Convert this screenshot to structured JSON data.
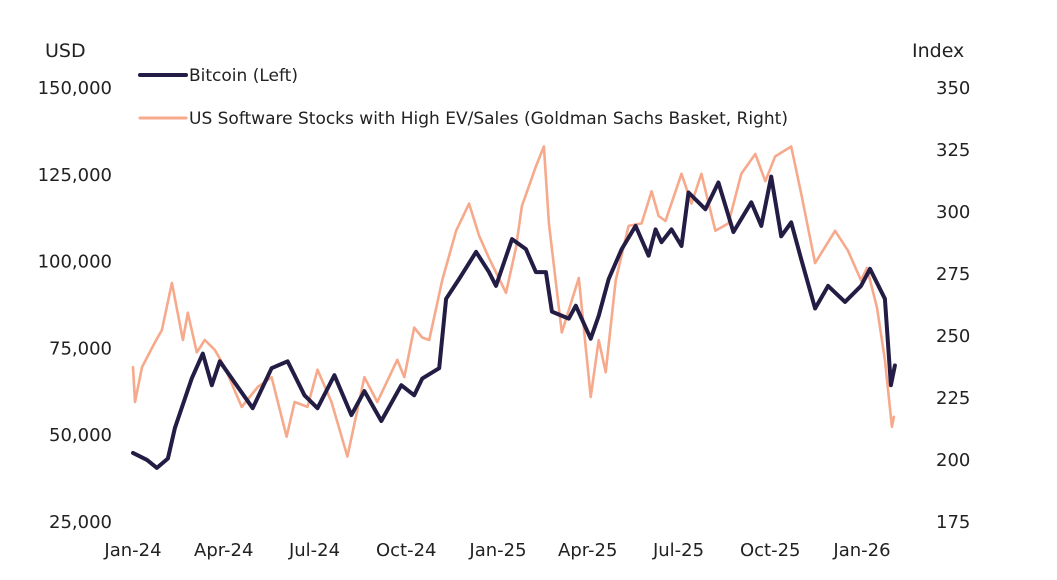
{
  "chart_data": {
    "type": "line",
    "title": "",
    "y_left_label": "USD",
    "y_right_label": "Index",
    "y_left_lim": [
      25000,
      150000
    ],
    "y_right_lim": [
      175,
      350
    ],
    "y_left_ticks": [
      "25,000",
      "50,000",
      "75,000",
      "100,000",
      "125,000",
      "150,000"
    ],
    "y_right_ticks": [
      "175",
      "200",
      "225",
      "250",
      "275",
      "300",
      "325",
      "350"
    ],
    "x_ticks": [
      "Jan-24",
      "Apr-24",
      "Jul-24",
      "Oct-24",
      "Jan-25",
      "Apr-25",
      "Jul-25",
      "Oct-25",
      "Jan-26"
    ],
    "x_range": [
      "2024-01-01",
      "2026-02-03"
    ],
    "grid": false,
    "legend_position": "top-left",
    "series": [
      {
        "name": "US Software Stocks with High EV/Sales (Goldman Sachs Basket, Right)",
        "axis": "right",
        "color": "#F7A98B",
        "points": [
          [
            "2024-01-01",
            237
          ],
          [
            "2024-01-03",
            223
          ],
          [
            "2024-01-10",
            237
          ],
          [
            "2024-01-23",
            247
          ],
          [
            "2024-01-30",
            252
          ],
          [
            "2024-02-09",
            271
          ],
          [
            "2024-02-20",
            248
          ],
          [
            "2024-02-25",
            259
          ],
          [
            "2024-03-05",
            243
          ],
          [
            "2024-03-13",
            248
          ],
          [
            "2024-03-23",
            244
          ],
          [
            "2024-04-02",
            237
          ],
          [
            "2024-04-19",
            221
          ],
          [
            "2024-05-05",
            229
          ],
          [
            "2024-05-19",
            233
          ],
          [
            "2024-06-03",
            209
          ],
          [
            "2024-06-11",
            223
          ],
          [
            "2024-06-24",
            221
          ],
          [
            "2024-07-04",
            236
          ],
          [
            "2024-07-18",
            223
          ],
          [
            "2024-08-03",
            201
          ],
          [
            "2024-08-20",
            233
          ],
          [
            "2024-09-02",
            223
          ],
          [
            "2024-09-22",
            240
          ],
          [
            "2024-09-29",
            233
          ],
          [
            "2024-10-09",
            253
          ],
          [
            "2024-10-17",
            249
          ],
          [
            "2024-10-24",
            248
          ],
          [
            "2024-11-06",
            272
          ],
          [
            "2024-11-20",
            292
          ],
          [
            "2024-12-03",
            303
          ],
          [
            "2024-12-13",
            290
          ],
          [
            "2024-12-23",
            281
          ],
          [
            "2025-01-09",
            267
          ],
          [
            "2025-01-19",
            285
          ],
          [
            "2025-01-25",
            302
          ],
          [
            "2025-02-08",
            318
          ],
          [
            "2025-02-16",
            326
          ],
          [
            "2025-02-21",
            295
          ],
          [
            "2025-03-06",
            251
          ],
          [
            "2025-03-23",
            273
          ],
          [
            "2025-04-04",
            225
          ],
          [
            "2025-04-12",
            248
          ],
          [
            "2025-04-19",
            235
          ],
          [
            "2025-04-29",
            272
          ],
          [
            "2025-05-12",
            294
          ],
          [
            "2025-05-25",
            295
          ],
          [
            "2025-06-04",
            308
          ],
          [
            "2025-06-11",
            298
          ],
          [
            "2025-06-18",
            296
          ],
          [
            "2025-07-04",
            315
          ],
          [
            "2025-07-14",
            303
          ],
          [
            "2025-07-24",
            315
          ],
          [
            "2025-08-07",
            292
          ],
          [
            "2025-08-20",
            295
          ],
          [
            "2025-09-02",
            315
          ],
          [
            "2025-09-16",
            323
          ],
          [
            "2025-09-26",
            312
          ],
          [
            "2025-10-06",
            322
          ],
          [
            "2025-10-22",
            326
          ],
          [
            "2025-11-01",
            307
          ],
          [
            "2025-11-15",
            279
          ],
          [
            "2025-12-05",
            292
          ],
          [
            "2025-12-18",
            284
          ],
          [
            "2025-12-31",
            272
          ],
          [
            "2026-01-06",
            277
          ],
          [
            "2026-01-16",
            261
          ],
          [
            "2026-01-24",
            240
          ],
          [
            "2026-01-31",
            213
          ],
          [
            "2026-02-02",
            217
          ]
        ]
      },
      {
        "name": "Bitcoin (Left)",
        "axis": "left",
        "color": "#231C44",
        "points": [
          [
            "2024-01-01",
            44600
          ],
          [
            "2024-01-15",
            42600
          ],
          [
            "2024-01-25",
            40300
          ],
          [
            "2024-02-05",
            43000
          ],
          [
            "2024-02-12",
            51800
          ],
          [
            "2024-02-29",
            66100
          ],
          [
            "2024-03-11",
            73200
          ],
          [
            "2024-03-20",
            64100
          ],
          [
            "2024-03-28",
            71000
          ],
          [
            "2024-04-30",
            57500
          ],
          [
            "2024-05-19",
            69000
          ],
          [
            "2024-06-04",
            71000
          ],
          [
            "2024-06-21",
            61200
          ],
          [
            "2024-07-04",
            57500
          ],
          [
            "2024-07-21",
            67000
          ],
          [
            "2024-08-07",
            55500
          ],
          [
            "2024-08-20",
            62400
          ],
          [
            "2024-09-06",
            53800
          ],
          [
            "2024-09-26",
            64100
          ],
          [
            "2024-10-09",
            61200
          ],
          [
            "2024-10-17",
            66000
          ],
          [
            "2024-11-03",
            69000
          ],
          [
            "2024-11-10",
            89000
          ],
          [
            "2024-11-23",
            94700
          ],
          [
            "2024-12-10",
            102500
          ],
          [
            "2024-12-23",
            96700
          ],
          [
            "2024-12-30",
            92700
          ],
          [
            "2025-01-15",
            106200
          ],
          [
            "2025-01-29",
            103300
          ],
          [
            "2025-02-08",
            96700
          ],
          [
            "2025-02-18",
            96700
          ],
          [
            "2025-02-24",
            85300
          ],
          [
            "2025-03-13",
            83300
          ],
          [
            "2025-03-20",
            87000
          ],
          [
            "2025-04-04",
            77500
          ],
          [
            "2025-04-12",
            84100
          ],
          [
            "2025-04-22",
            94700
          ],
          [
            "2025-05-05",
            103300
          ],
          [
            "2025-05-19",
            110000
          ],
          [
            "2025-06-01",
            101400
          ],
          [
            "2025-06-08",
            109000
          ],
          [
            "2025-06-14",
            105300
          ],
          [
            "2025-06-24",
            109000
          ],
          [
            "2025-07-04",
            104200
          ],
          [
            "2025-07-11",
            119600
          ],
          [
            "2025-07-28",
            114800
          ],
          [
            "2025-08-10",
            122500
          ],
          [
            "2025-08-25",
            108200
          ],
          [
            "2025-09-12",
            116800
          ],
          [
            "2025-09-22",
            110000
          ],
          [
            "2025-10-02",
            124200
          ],
          [
            "2025-10-12",
            107000
          ],
          [
            "2025-10-22",
            111000
          ],
          [
            "2025-11-01",
            100400
          ],
          [
            "2025-11-15",
            86200
          ],
          [
            "2025-11-28",
            92700
          ],
          [
            "2025-12-15",
            88100
          ],
          [
            "2025-12-31",
            92700
          ],
          [
            "2026-01-09",
            97600
          ],
          [
            "2026-01-24",
            89000
          ],
          [
            "2026-01-30",
            64100
          ],
          [
            "2026-02-03",
            69800
          ]
        ]
      }
    ]
  }
}
